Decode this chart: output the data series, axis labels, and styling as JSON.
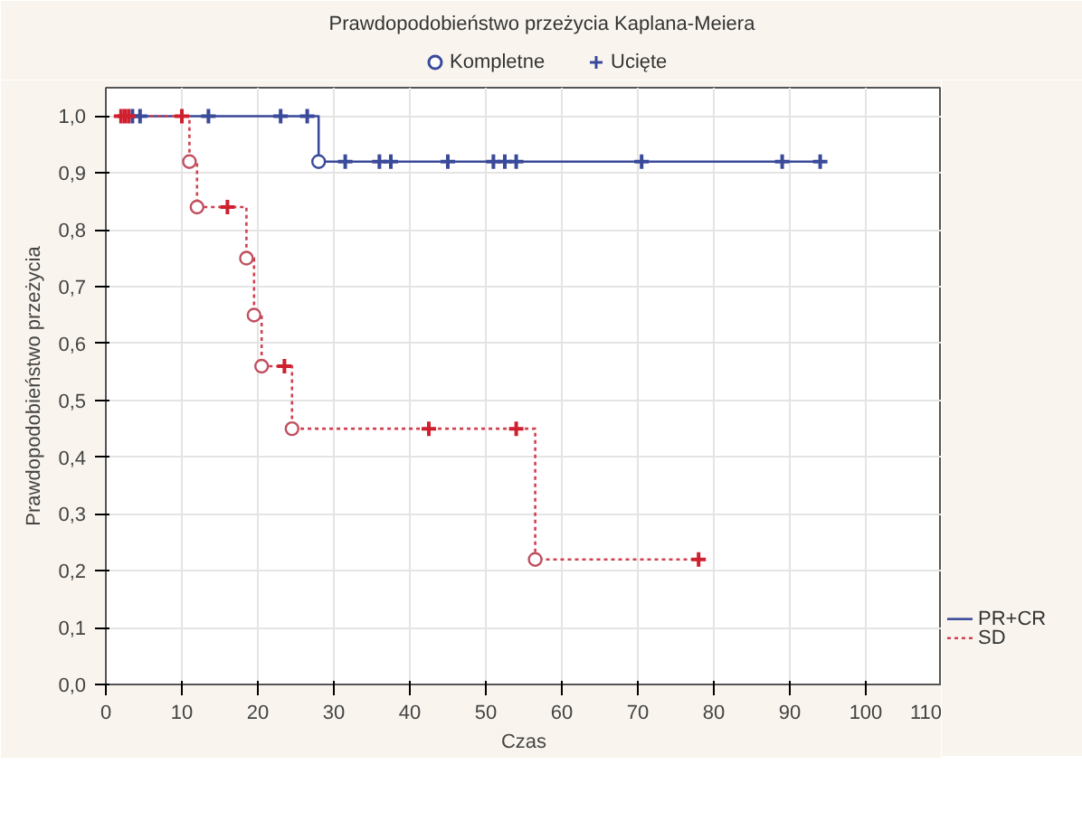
{
  "chart_data": {
    "type": "step",
    "title": "Prawdopodobieństwo przeżycia Kaplana-Meiera",
    "xlabel": "Czas",
    "ylabel": "Prawdopodobieństwo przeżycia",
    "xlim": [
      0,
      110
    ],
    "ylim": [
      0,
      1.05
    ],
    "xticks": [
      0,
      10,
      20,
      30,
      40,
      50,
      60,
      70,
      80,
      90,
      100,
      110
    ],
    "yticks": [
      {
        "value": 0,
        "label": "0,0"
      },
      {
        "value": 0.1,
        "label": "0,1"
      },
      {
        "value": 0.2,
        "label": "0,2"
      },
      {
        "value": 0.3,
        "label": "0,3"
      },
      {
        "value": 0.4,
        "label": "0,4"
      },
      {
        "value": 0.5,
        "label": "0,5"
      },
      {
        "value": 0.6,
        "label": "0,6"
      },
      {
        "value": 0.7,
        "label": "0,7"
      },
      {
        "value": 0.8,
        "label": "0,8"
      },
      {
        "value": 0.9,
        "label": "0,9"
      },
      {
        "value": 1.0,
        "label": "1,0"
      }
    ],
    "grid": true,
    "legend": "top",
    "series": [
      {
        "name": "PR+CR",
        "color": "#3a4a9a",
        "line_style": "solid",
        "marker": "none",
        "x": [
          2,
          28,
          94
        ],
        "values": [
          1.0,
          0.92,
          0.92
        ]
      },
      {
        "name": "SD",
        "color": "#d04050",
        "line_style": "dotted",
        "marker": "none",
        "x": [
          2,
          11,
          12,
          18.5,
          19.5,
          20.5,
          24.5,
          56.5,
          78
        ],
        "values": [
          1.0,
          0.92,
          0.84,
          0.75,
          0.65,
          0.56,
          0.45,
          0.22,
          0.22
        ]
      },
      {
        "name": "Kompletne",
        "type": "scatter",
        "marker": "circle",
        "color": "#3a4a9a",
        "x": [
          28,
          11,
          12,
          18.5,
          19.5,
          20.5,
          24.5,
          56.5
        ],
        "values": [
          0.92,
          0.92,
          0.84,
          0.75,
          0.65,
          0.56,
          0.45,
          0.22
        ],
        "colors": [
          "#3a4a9a",
          "#c05060",
          "#c05060",
          "#c05060",
          "#c05060",
          "#c05060",
          "#c05060",
          "#c05060"
        ]
      },
      {
        "name": "Ucięte",
        "type": "scatter",
        "marker": "cross",
        "color": "#3a4a9a",
        "x": [
          3.5,
          4.5,
          13.5,
          23,
          26.5,
          31.5,
          36,
          37.5,
          45,
          51,
          52.5,
          54,
          70.5,
          89,
          94,
          2,
          2.5,
          3,
          10,
          16,
          23.5,
          42.5,
          54,
          78
        ],
        "values": [
          1.0,
          1.0,
          1.0,
          1.0,
          1.0,
          0.92,
          0.92,
          0.92,
          0.92,
          0.92,
          0.92,
          0.92,
          0.92,
          0.92,
          0.92,
          1.0,
          1.0,
          1.0,
          1.0,
          0.84,
          0.56,
          0.45,
          0.45,
          0.22
        ],
        "colors": [
          "#3a4a9a",
          "#3a4a9a",
          "#3a4a9a",
          "#3a4a9a",
          "#3a4a9a",
          "#3a4a9a",
          "#3a4a9a",
          "#3a4a9a",
          "#3a4a9a",
          "#3a4a9a",
          "#3a4a9a",
          "#3a4a9a",
          "#3a4a9a",
          "#3a4a9a",
          "#3a4a9a",
          "#d02030",
          "#d02030",
          "#d02030",
          "#d02030",
          "#d02030",
          "#d02030",
          "#d02030",
          "#d02030",
          "#d02030"
        ]
      }
    ]
  }
}
